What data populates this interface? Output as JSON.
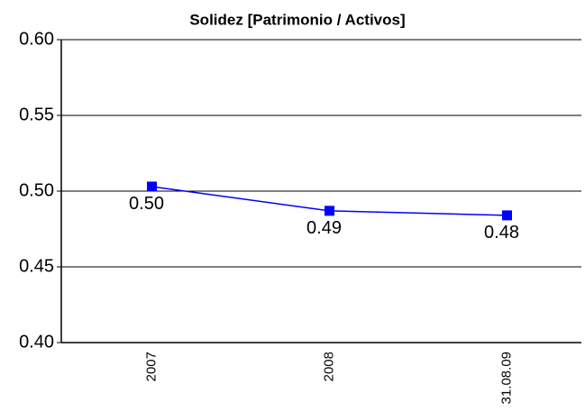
{
  "chart_data": {
    "type": "line",
    "title": "Solidez [Patrimonio / Activos]",
    "categories": [
      "2007",
      "2008",
      "31.08.09"
    ],
    "series": [
      {
        "color": "#0000ff",
        "values": [
          0.503,
          0.487,
          0.484
        ],
        "value_labels": [
          "0.50",
          "0.49",
          "0.48"
        ]
      }
    ],
    "ylim": [
      0.4,
      0.6
    ],
    "yticks": [
      {
        "value": 0.4,
        "label": "0.40"
      },
      0.45,
      {
        "value": 0.5,
        "label": "0.50"
      },
      0.55,
      {
        "value": 0.6,
        "label": "0.60"
      }
    ],
    "grid": true
  }
}
